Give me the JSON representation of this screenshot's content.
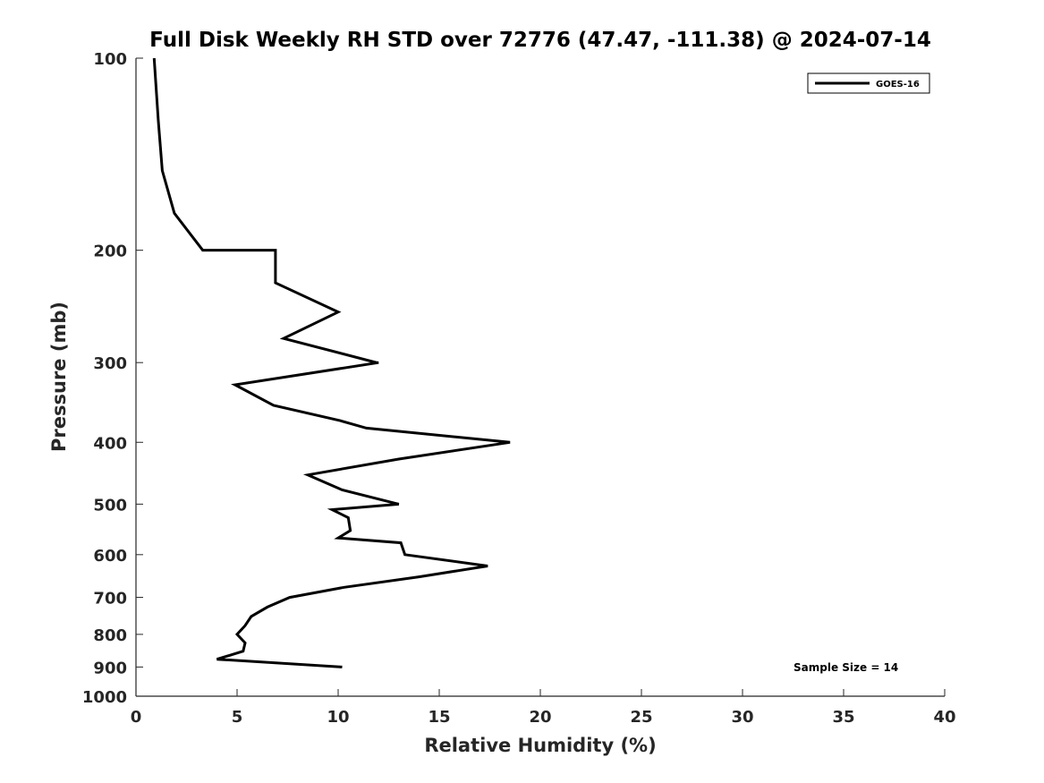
{
  "chart_data": {
    "type": "line",
    "title": "Full Disk Weekly RH STD over 72776 (47.47, -111.38) @ 2024-07-14",
    "xlabel": "Relative Humidity (%)",
    "ylabel": "Pressure (mb)",
    "xlim": [
      0,
      40
    ],
    "ylim": [
      100,
      1000
    ],
    "y_scale": "log",
    "y_reversed": true,
    "grid": false,
    "legend_position": "top-right",
    "x_ticks": [
      "0",
      "5",
      "10",
      "15",
      "20",
      "25",
      "30",
      "35",
      "40"
    ],
    "x_tick_values": [
      0,
      5,
      10,
      15,
      20,
      25,
      30,
      35,
      40
    ],
    "y_ticks": [
      "100",
      "200",
      "300",
      "400",
      "500",
      "600",
      "700",
      "800",
      "900",
      "1000"
    ],
    "y_tick_values": [
      100,
      200,
      300,
      400,
      500,
      600,
      700,
      800,
      900,
      1000
    ],
    "series": [
      {
        "name": "GOES-16",
        "color": "#000000",
        "points": [
          [
            0.9,
            100
          ],
          [
            1.1,
            125
          ],
          [
            1.3,
            150
          ],
          [
            1.9,
            175
          ],
          [
            3.3,
            200
          ],
          [
            6.9,
            200
          ],
          [
            6.9,
            225
          ],
          [
            10.0,
            250
          ],
          [
            7.3,
            275
          ],
          [
            11.9,
            300
          ],
          [
            12.0,
            300
          ],
          [
            4.9,
            325
          ],
          [
            6.8,
            350
          ],
          [
            10.1,
            370
          ],
          [
            11.4,
            380
          ],
          [
            18.5,
            400
          ],
          [
            13.0,
            425
          ],
          [
            8.5,
            450
          ],
          [
            10.2,
            475
          ],
          [
            13.0,
            500
          ],
          [
            9.7,
            510
          ],
          [
            10.5,
            525
          ],
          [
            10.6,
            550
          ],
          [
            10.0,
            565
          ],
          [
            13.1,
            575
          ],
          [
            13.3,
            600
          ],
          [
            17.4,
            625
          ],
          [
            14.0,
            650
          ],
          [
            10.3,
            675
          ],
          [
            7.6,
            700
          ],
          [
            6.5,
            725
          ],
          [
            5.7,
            750
          ],
          [
            5.4,
            775
          ],
          [
            5.0,
            800
          ],
          [
            5.4,
            825
          ],
          [
            5.3,
            850
          ],
          [
            4.0,
            875
          ],
          [
            10.2,
            900
          ]
        ]
      }
    ],
    "annotations": [
      "Sample Size = 14"
    ]
  }
}
